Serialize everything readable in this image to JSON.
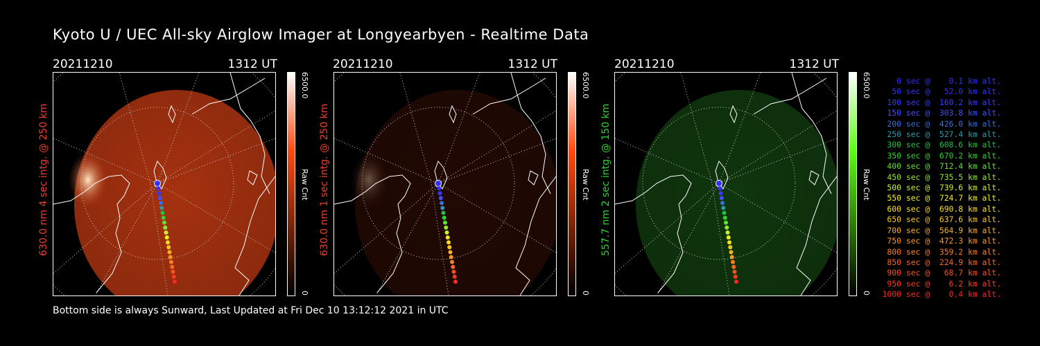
{
  "title": "Kyoto U / UEC All-sky Airglow Imager at Longyearbyen - Realtime Data",
  "panels": [
    {
      "date": "20211210",
      "time": "1312 UT",
      "side_label": "630.0 nm 4 sec intg. @ 250 km",
      "label_color": "#e8402a",
      "colorbar_max": "6500.0",
      "colorbar_min": "0",
      "colorbar_unit": "Raw Cnt",
      "colorbar_color": "#ff4a10",
      "image_color": "#c23a12",
      "image_intensity": 0.85
    },
    {
      "date": "20211210",
      "time": "1312 UT",
      "side_label": "630.0 nm 1 sec intg. @ 250 km",
      "label_color": "#e8402a",
      "colorbar_max": "6500.0",
      "colorbar_min": "0",
      "colorbar_unit": "Raw Cnt",
      "colorbar_color": "#ff4a10",
      "image_color": "#4a1508",
      "image_intensity": 0.45
    },
    {
      "date": "20211210",
      "time": "1312 UT",
      "side_label": "557.7 nm 2 sec intg. @ 150 km",
      "label_color": "#2fd22f",
      "colorbar_max": "6500.0",
      "colorbar_min": "0",
      "colorbar_unit": "Raw Cnt",
      "colorbar_color": "#5aff10",
      "image_color": "#1a5a16",
      "image_intensity": 0.6
    }
  ],
  "footer": "Bottom side is always Sunward, Last Updated at Fri Dec 10 13:12:12 2021 in UTC",
  "legend": [
    {
      "text": "   0 sec @    0.1 km alt.",
      "color": "#3030ff"
    },
    {
      "text": "  50 sec @   52.0 km alt.",
      "color": "#3030ff"
    },
    {
      "text": " 100 sec @  160.2 km alt.",
      "color": "#3838ff"
    },
    {
      "text": " 150 sec @  303.8 km alt.",
      "color": "#3c50ff"
    },
    {
      "text": " 200 sec @  426.0 km alt.",
      "color": "#3070e0"
    },
    {
      "text": " 250 sec @  527.4 km alt.",
      "color": "#2a9aaa"
    },
    {
      "text": " 300 sec @  608.6 km alt.",
      "color": "#20c040"
    },
    {
      "text": " 350 sec @  670.2 km alt.",
      "color": "#30d030"
    },
    {
      "text": " 400 sec @  712.4 km alt.",
      "color": "#60e030"
    },
    {
      "text": " 450 sec @  735.5 km alt.",
      "color": "#90e830"
    },
    {
      "text": " 500 sec @  739.6 km alt.",
      "color": "#c8f030"
    },
    {
      "text": " 550 sec @  724.7 km alt.",
      "color": "#f0f020"
    },
    {
      "text": " 600 sec @  690.8 km alt.",
      "color": "#f8e020"
    },
    {
      "text": " 650 sec @  637.6 km alt.",
      "color": "#f8c820"
    },
    {
      "text": " 700 sec @  564.9 km alt.",
      "color": "#f8b020"
    },
    {
      "text": " 750 sec @  472.3 km alt.",
      "color": "#f89820"
    },
    {
      "text": " 800 sec @  359.2 km alt.",
      "color": "#f88020"
    },
    {
      "text": " 850 sec @  224.9 km alt.",
      "color": "#f86820"
    },
    {
      "text": " 900 sec @   68.7 km alt.",
      "color": "#f85020"
    },
    {
      "text": " 950 sec @    6.2 km alt.",
      "color": "#f83c20"
    },
    {
      "text": "1000 sec @    0.4 km alt.",
      "color": "#f82820"
    }
  ]
}
